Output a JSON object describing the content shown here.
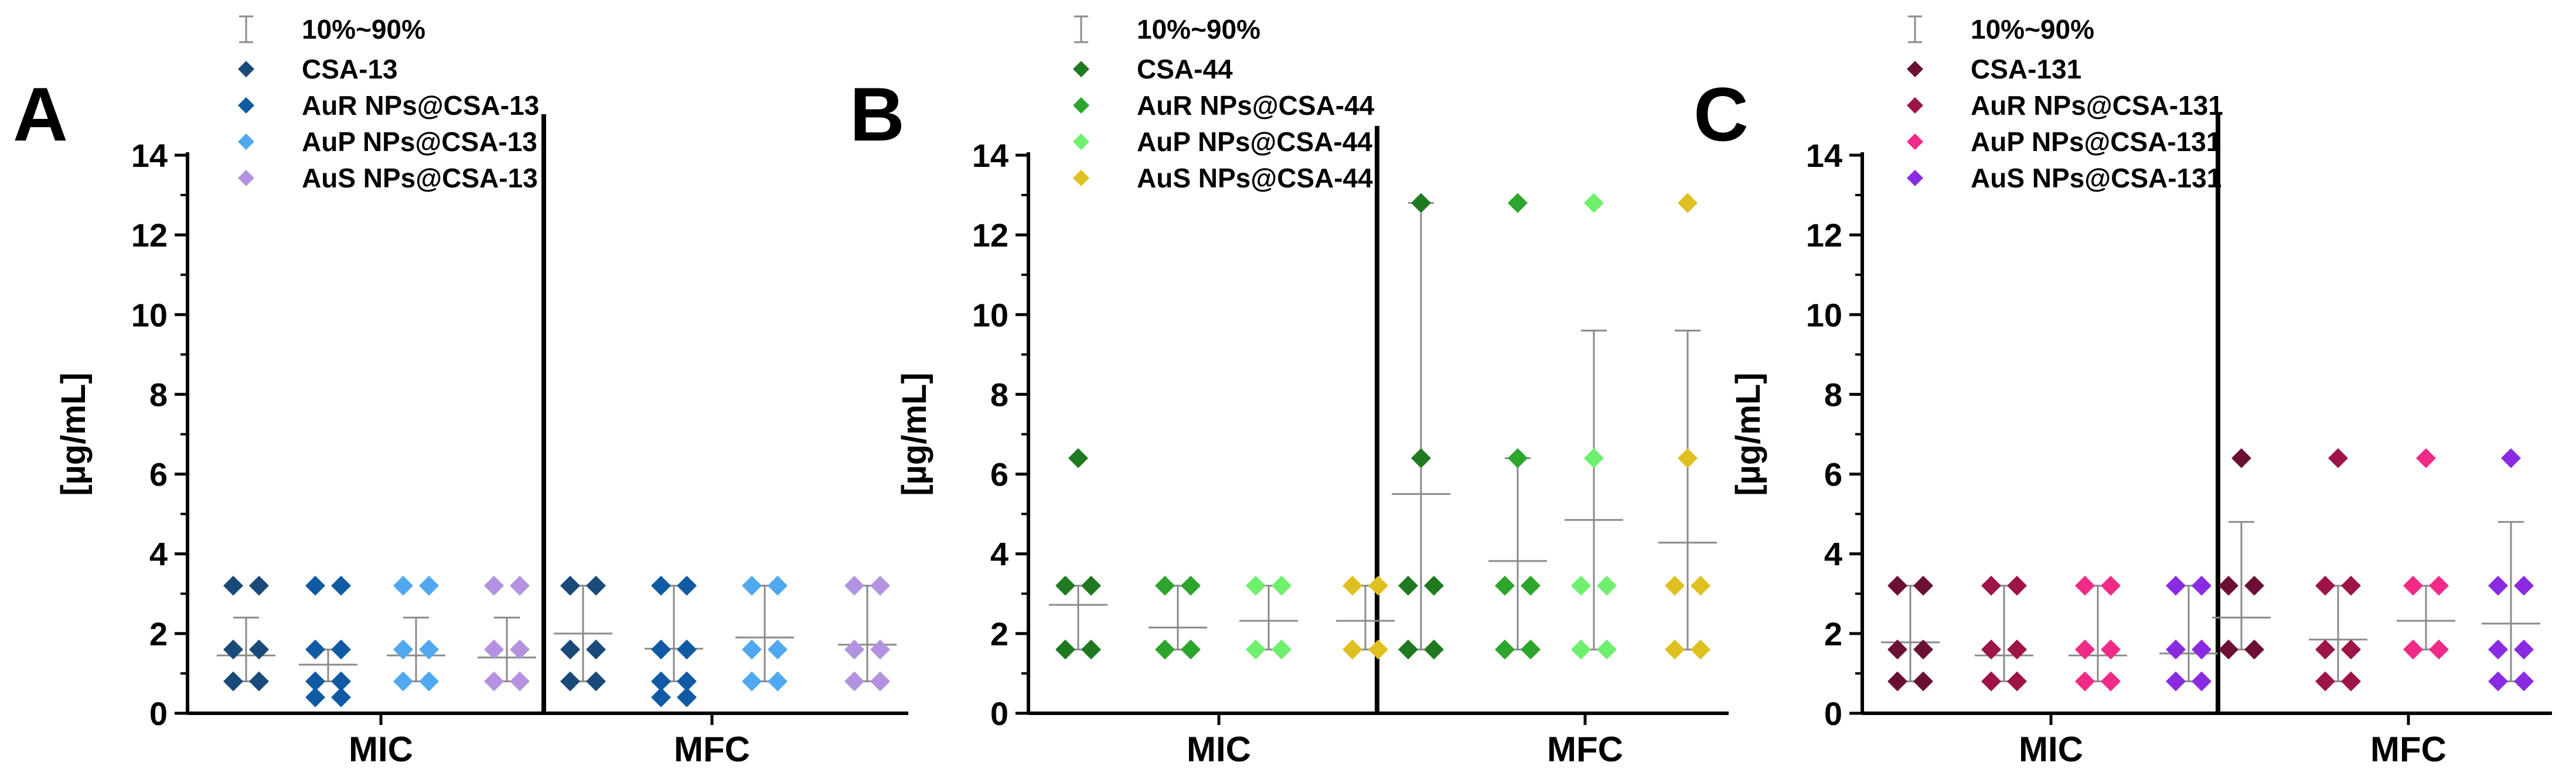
{
  "chart_data": [
    {
      "type": "scatter",
      "panel_label": "A",
      "ylabel": "[µg/mL]",
      "ylim": [
        0,
        14
      ],
      "yticks": [
        0,
        2,
        4,
        6,
        8,
        10,
        12,
        14
      ],
      "groups": [
        "MIC",
        "MFC"
      ],
      "legend_error_label": "10%~90%",
      "series": [
        {
          "name": "CSA-13",
          "color": "#1a4a7a",
          "values": {
            "MIC": [
              0.8,
              1.6,
              3.2
            ],
            "MFC": [
              0.8,
              1.6,
              3.2
            ]
          },
          "mean": {
            "MIC": 1.45,
            "MFC": 2.0
          },
          "p10": {
            "MIC": 0.8,
            "MFC": 0.8
          },
          "p90": {
            "MIC": 2.4,
            "MFC": 3.2
          }
        },
        {
          "name": "AuR NPs@CSA-13",
          "color": "#0f5aa3",
          "values": {
            "MIC": [
              0.4,
              0.8,
              1.6,
              3.2
            ],
            "MFC": [
              0.4,
              0.8,
              1.6,
              3.2
            ]
          },
          "mean": {
            "MIC": 1.22,
            "MFC": 1.62
          },
          "p10": {
            "MIC": 0.8,
            "MFC": 0.8
          },
          "p90": {
            "MIC": 1.6,
            "MFC": 3.2
          }
        },
        {
          "name": "AuP NPs@CSA-13",
          "color": "#4fa8f0",
          "values": {
            "MIC": [
              0.8,
              1.6,
              3.2
            ],
            "MFC": [
              0.8,
              1.6,
              3.2
            ]
          },
          "mean": {
            "MIC": 1.45,
            "MFC": 1.9
          },
          "p10": {
            "MIC": 0.8,
            "MFC": 0.8
          },
          "p90": {
            "MIC": 2.4,
            "MFC": 3.2
          }
        },
        {
          "name": "AuS NPs@CSA-13",
          "color": "#b393e0",
          "values": {
            "MIC": [
              0.8,
              1.6,
              3.2
            ],
            "MFC": [
              0.8,
              1.6,
              3.2
            ]
          },
          "mean": {
            "MIC": 1.4,
            "MFC": 1.72
          },
          "p10": {
            "MIC": 0.8,
            "MFC": 0.8
          },
          "p90": {
            "MIC": 2.4,
            "MFC": 3.2
          }
        }
      ]
    },
    {
      "type": "scatter",
      "panel_label": "B",
      "ylabel": "[µg/mL]",
      "ylim": [
        0,
        14
      ],
      "yticks": [
        0,
        2,
        4,
        6,
        8,
        10,
        12,
        14
      ],
      "groups": [
        "MIC",
        "MFC"
      ],
      "legend_error_label": "10%~90%",
      "series": [
        {
          "name": "CSA-44",
          "color": "#1f7a1f",
          "values": {
            "MIC": [
              1.6,
              3.2,
              6.4
            ],
            "MFC": [
              1.6,
              3.2,
              6.4,
              12.8
            ]
          },
          "mean": {
            "MIC": 2.72,
            "MFC": 5.5
          },
          "p10": {
            "MIC": 1.6,
            "MFC": 1.6
          },
          "p90": {
            "MIC": 3.2,
            "MFC": 12.8
          }
        },
        {
          "name": "AuR NPs@CSA-44",
          "color": "#2ca52c",
          "values": {
            "MIC": [
              1.6,
              3.2
            ],
            "MFC": [
              1.6,
              3.2,
              6.4,
              12.8
            ]
          },
          "mean": {
            "MIC": 2.15,
            "MFC": 3.82
          },
          "p10": {
            "MIC": 1.6,
            "MFC": 1.6
          },
          "p90": {
            "MIC": 3.2,
            "MFC": 6.4
          }
        },
        {
          "name": "AuP NPs@CSA-44",
          "color": "#6ef06e",
          "values": {
            "MIC": [
              1.6,
              3.2
            ],
            "MFC": [
              1.6,
              3.2,
              6.4,
              12.8
            ]
          },
          "mean": {
            "MIC": 2.32,
            "MFC": 4.85
          },
          "p10": {
            "MIC": 1.6,
            "MFC": 1.6
          },
          "p90": {
            "MIC": 3.2,
            "MFC": 9.6
          }
        },
        {
          "name": "AuS NPs@CSA-44",
          "color": "#e0c020",
          "values": {
            "MIC": [
              1.6,
              3.2
            ],
            "MFC": [
              1.6,
              3.2,
              6.4,
              12.8
            ]
          },
          "mean": {
            "MIC": 2.32,
            "MFC": 4.28
          },
          "p10": {
            "MIC": 1.6,
            "MFC": 1.6
          },
          "p90": {
            "MIC": 3.2,
            "MFC": 9.6
          }
        }
      ]
    },
    {
      "type": "scatter",
      "panel_label": "C",
      "ylabel": "[µg/mL]",
      "ylim": [
        0,
        14
      ],
      "yticks": [
        0,
        2,
        4,
        6,
        8,
        10,
        12,
        14
      ],
      "groups": [
        "MIC",
        "MFC"
      ],
      "legend_error_label": "10%~90%",
      "series": [
        {
          "name": "CSA-131",
          "color": "#6b1034",
          "values": {
            "MIC": [
              0.8,
              1.6,
              3.2
            ],
            "MFC": [
              1.6,
              3.2,
              6.4
            ]
          },
          "mean": {
            "MIC": 1.78,
            "MFC": 2.4
          },
          "p10": {
            "MIC": 0.8,
            "MFC": 1.6
          },
          "p90": {
            "MIC": 3.2,
            "MFC": 4.8
          }
        },
        {
          "name": "AuR NPs@CSA-131",
          "color": "#9c1448",
          "values": {
            "MIC": [
              0.8,
              1.6,
              3.2
            ],
            "MFC": [
              0.8,
              1.6,
              3.2,
              6.4
            ]
          },
          "mean": {
            "MIC": 1.45,
            "MFC": 1.85
          },
          "p10": {
            "MIC": 0.8,
            "MFC": 0.8
          },
          "p90": {
            "MIC": 3.2,
            "MFC": 3.2
          }
        },
        {
          "name": "AuP NPs@CSA-131",
          "color": "#f02a86",
          "values": {
            "MIC": [
              0.8,
              1.6,
              3.2
            ],
            "MFC": [
              1.6,
              3.2,
              6.4
            ]
          },
          "mean": {
            "MIC": 1.45,
            "MFC": 2.32
          },
          "p10": {
            "MIC": 0.8,
            "MFC": 1.6
          },
          "p90": {
            "MIC": 3.2,
            "MFC": 3.2
          }
        },
        {
          "name": "AuS NPs@CSA-131",
          "color": "#8a2be2",
          "values": {
            "MIC": [
              0.8,
              1.6,
              3.2
            ],
            "MFC": [
              0.8,
              1.6,
              3.2,
              6.4
            ]
          },
          "mean": {
            "MIC": 1.5,
            "MFC": 2.25
          },
          "p10": {
            "MIC": 0.8,
            "MFC": 0.8
          },
          "p90": {
            "MIC": 3.2,
            "MFC": 4.8
          }
        }
      ]
    }
  ]
}
